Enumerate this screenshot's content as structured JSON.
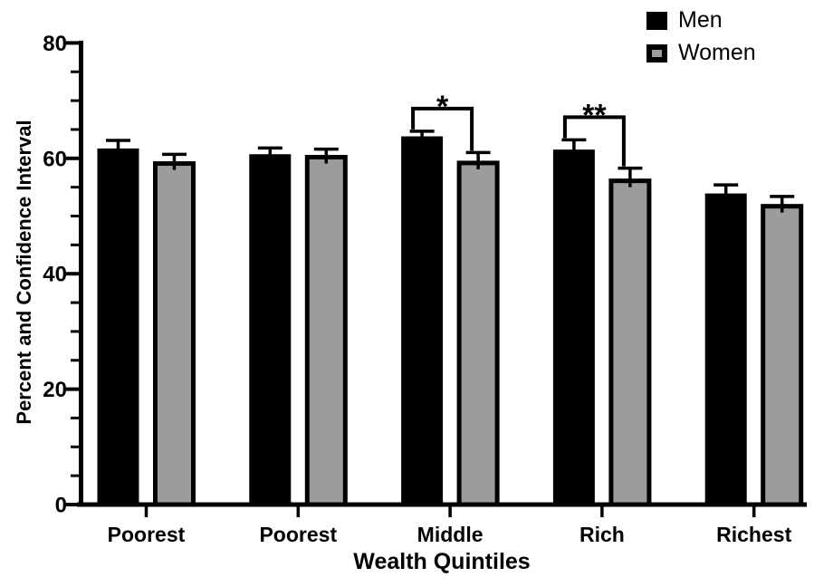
{
  "figure": {
    "background": "#ffffff"
  },
  "chart_data": {
    "type": "bar",
    "title": "",
    "xlabel": "Wealth Quintiles",
    "ylabel": "Percent and Confidence Interval",
    "categories": [
      "Poorest",
      "Poorest",
      "Middle",
      "Rich",
      "Richest"
    ],
    "series": [
      {
        "name": "Men",
        "color": "#000000",
        "values": [
          61.4,
          60.4,
          63.5,
          61.2,
          53.6
        ],
        "errors": [
          1.7,
          1.4,
          1.2,
          2.0,
          1.8
        ]
      },
      {
        "name": "Women",
        "color": "#9c9c9c",
        "values": [
          59.1,
          60.2,
          59.2,
          56.1,
          51.7
        ],
        "errors": [
          1.6,
          1.4,
          1.8,
          2.2,
          1.7
        ]
      }
    ],
    "ylim": [
      0,
      80
    ],
    "yticks": [
      0,
      20,
      40,
      60,
      80
    ],
    "minor_tick_step": 5,
    "error_bars": "upper-only",
    "grid": false,
    "legend_position": "top-right",
    "significance": [
      {
        "category_index": 2,
        "label": "*"
      },
      {
        "category_index": 3,
        "label": "**"
      }
    ],
    "colors": {
      "axis": "#000000",
      "bar_border": "#000000",
      "error_bar": "#000000",
      "significance": "#000000",
      "text": "#000000"
    }
  }
}
